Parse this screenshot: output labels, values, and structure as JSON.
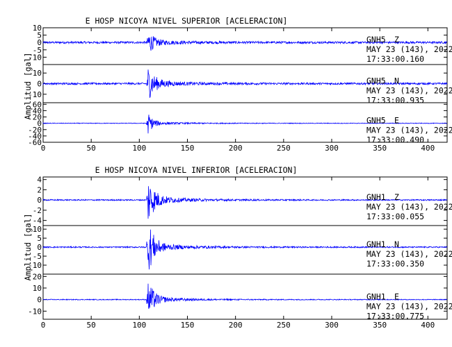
{
  "colors": {
    "trace": "#0000ff",
    "axes": "#000000",
    "background": "#ffffff"
  },
  "chart_data": [
    {
      "type": "line",
      "title": "E HOSP NICOYA NIVEL SUPERIOR [ACELERACION]",
      "ylabel": "Amplitud [gal]",
      "xlabel": "",
      "xlim": [
        0,
        420
      ],
      "x_ticks": [
        "0",
        "50",
        "100",
        "150",
        "200",
        "250",
        "300",
        "350",
        "400"
      ],
      "grid": false,
      "panels": [
        {
          "station": "GNH5",
          "component": "Z",
          "date": "MAY 23 (143), 2022",
          "time": "17:33:00.160",
          "ylim": [
            -15,
            10
          ],
          "y_ticks": [
            "10",
            "5",
            "0",
            "-5",
            "-10"
          ],
          "onset": 109,
          "peak": 8,
          "noise": 0.7,
          "decay": 5,
          "coda_level": 1.2
        },
        {
          "station": "GNH5",
          "component": "N",
          "date": "MAY 23 (143), 2022",
          "time": "17:33:00.935",
          "ylim": [
            -18,
            18
          ],
          "y_ticks": [
            "10",
            "0",
            "-10"
          ],
          "onset": 109,
          "peak": 14,
          "noise": 0.9,
          "decay": 7,
          "coda_level": 2.0
        },
        {
          "station": "GNH5",
          "component": "E",
          "date": "MAY 23 (143), 2022",
          "time": "17:33:00.490",
          "ylim": [
            -60,
            65
          ],
          "y_ticks": [
            "60",
            "40",
            "20",
            "0",
            "-20",
            "-40",
            "-60"
          ],
          "onset": 109,
          "peak": 30,
          "noise": 1.0,
          "decay": 5,
          "coda_level": 4.0
        }
      ]
    },
    {
      "type": "line",
      "title": "E HOSP NICOYA NIVEL INFERIOR [ACELERACION]",
      "ylabel": "Amplitud [gal]",
      "xlabel": "",
      "xlim": [
        0,
        420
      ],
      "x_ticks": [
        "0",
        "50",
        "100",
        "150",
        "200",
        "250",
        "300",
        "350",
        "400"
      ],
      "grid": false,
      "panels": [
        {
          "station": "GNH1",
          "component": "Z",
          "date": "MAY 23 (143), 2022",
          "time": "17:33:00.055",
          "ylim": [
            -5,
            4.5
          ],
          "y_ticks": [
            "4",
            "2",
            "0",
            "-2",
            "-4"
          ],
          "onset": 109,
          "peak": 4,
          "noise": 0.12,
          "decay": 7,
          "coda_level": 0.6
        },
        {
          "station": "GNH1",
          "component": "N",
          "date": "MAY 23 (143), 2022",
          "time": "17:33:00.350",
          "ylim": [
            -15,
            12
          ],
          "y_ticks": [
            "10",
            "5",
            "0",
            "-5",
            "-10"
          ],
          "onset": 109,
          "peak": 14,
          "noise": 0.35,
          "decay": 6,
          "coda_level": 1.8
        },
        {
          "station": "GNH1",
          "component": "E",
          "date": "MAY 23 (143), 2022",
          "time": "17:33:00.775",
          "ylim": [
            -17,
            22
          ],
          "y_ticks": [
            "20",
            "10",
            "0",
            "-10"
          ],
          "onset": 109,
          "peak": 16,
          "noise": 0.35,
          "decay": 6,
          "coda_level": 2.0
        }
      ]
    }
  ]
}
